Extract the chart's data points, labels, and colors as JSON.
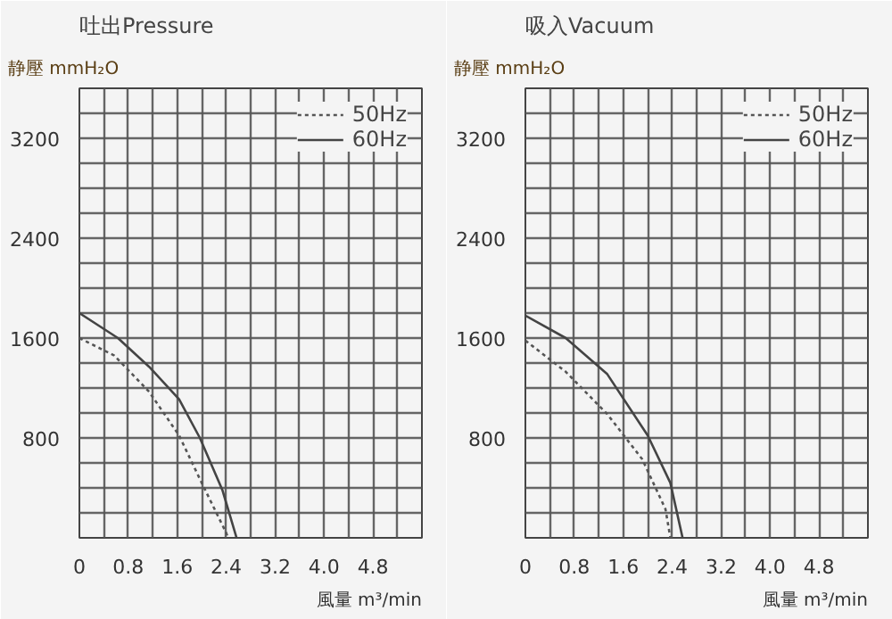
{
  "chart_data": [
    {
      "type": "line",
      "title": "吐出Pressure",
      "ylabel": "静壓 mmH₂O",
      "xlabel": "風量 m³/min",
      "xlim": [
        0,
        5.6
      ],
      "ylim": [
        0,
        3600
      ],
      "xticks": [
        0,
        {
          "value": 0.4,
          "label": null
        },
        0.8,
        {
          "value": 1.2,
          "label": null
        },
        1.6,
        {
          "value": 2.0,
          "label": null
        },
        2.4,
        {
          "value": 2.8,
          "label": null
        },
        3.2,
        {
          "value": 3.6,
          "label": null
        },
        {
          "value": 4.0,
          "label": "4.0"
        },
        {
          "value": 4.4,
          "label": null
        },
        4.8,
        {
          "value": 5.2,
          "label": null
        },
        {
          "value": 5.6,
          "label": null
        }
      ],
      "yticks": [
        {
          "value": 0,
          "label": null
        },
        {
          "value": 200,
          "label": null
        },
        {
          "value": 400,
          "label": null
        },
        {
          "value": 600,
          "label": null
        },
        800,
        {
          "value": 1000,
          "label": null
        },
        {
          "value": 1200,
          "label": null
        },
        {
          "value": 1400,
          "label": null
        },
        1600,
        {
          "value": 1800,
          "label": null
        },
        {
          "value": 2000,
          "label": null
        },
        {
          "value": 2200,
          "label": null
        },
        2400,
        {
          "value": 2600,
          "label": null
        },
        {
          "value": 2800,
          "label": null
        },
        {
          "value": 3000,
          "label": null
        },
        3200,
        {
          "value": 3400,
          "label": null
        },
        {
          "value": 3600,
          "label": null
        }
      ],
      "grid": true,
      "legend": "top right",
      "marker": "none",
      "series": [
        {
          "name": "50Hz",
          "color": "#555555",
          "line_style": "dotted",
          "x": [
            0,
            0.57,
            1.14,
            1.63,
            2.0,
            2.4,
            2.43
          ],
          "values": [
            1600,
            1460,
            1170,
            820,
            440,
            40,
            0
          ]
        },
        {
          "name": "60Hz",
          "color": "#444444",
          "line_style": "solid",
          "x": [
            0,
            0.63,
            1.14,
            1.63,
            1.97,
            2.34,
            2.57
          ],
          "values": [
            1800,
            1600,
            1370,
            1110,
            800,
            380,
            0
          ]
        }
      ]
    },
    {
      "type": "line",
      "title": "吸入Vacuum",
      "ylabel": "静壓 mmH₂O",
      "xlabel": "風量 m³/min",
      "xlim": [
        0,
        5.6
      ],
      "ylim": [
        0,
        3600
      ],
      "xticks": [
        0,
        {
          "value": 0.4,
          "label": null
        },
        0.8,
        {
          "value": 1.2,
          "label": null
        },
        1.6,
        {
          "value": 2.0,
          "label": null
        },
        2.4,
        {
          "value": 2.8,
          "label": null
        },
        3.2,
        {
          "value": 3.6,
          "label": null
        },
        {
          "value": 4.0,
          "label": "4.0"
        },
        {
          "value": 4.4,
          "label": null
        },
        4.8,
        {
          "value": 5.2,
          "label": null
        },
        {
          "value": 5.6,
          "label": null
        }
      ],
      "yticks": [
        {
          "value": 0,
          "label": null
        },
        {
          "value": 200,
          "label": null
        },
        {
          "value": 400,
          "label": null
        },
        {
          "value": 600,
          "label": null
        },
        800,
        {
          "value": 1000,
          "label": null
        },
        {
          "value": 1200,
          "label": null
        },
        {
          "value": 1400,
          "label": null
        },
        1600,
        {
          "value": 1800,
          "label": null
        },
        {
          "value": 2000,
          "label": null
        },
        {
          "value": 2200,
          "label": null
        },
        2400,
        {
          "value": 2600,
          "label": null
        },
        {
          "value": 2800,
          "label": null
        },
        {
          "value": 3000,
          "label": null
        },
        3200,
        {
          "value": 3400,
          "label": null
        },
        {
          "value": 3600,
          "label": null
        }
      ],
      "grid": true,
      "legend": "top right",
      "marker": "none",
      "series": [
        {
          "name": "50Hz",
          "color": "#555555",
          "line_style": "dotted",
          "x": [
            0,
            0.66,
            1.34,
            1.91,
            2.29,
            2.37
          ],
          "values": [
            1580,
            1330,
            990,
            630,
            230,
            0
          ]
        },
        {
          "name": "60Hz",
          "color": "#444444",
          "line_style": "solid",
          "x": [
            0,
            0.66,
            1.34,
            2.0,
            2.37,
            2.57
          ],
          "values": [
            1780,
            1600,
            1310,
            820,
            440,
            0
          ]
        }
      ]
    }
  ]
}
